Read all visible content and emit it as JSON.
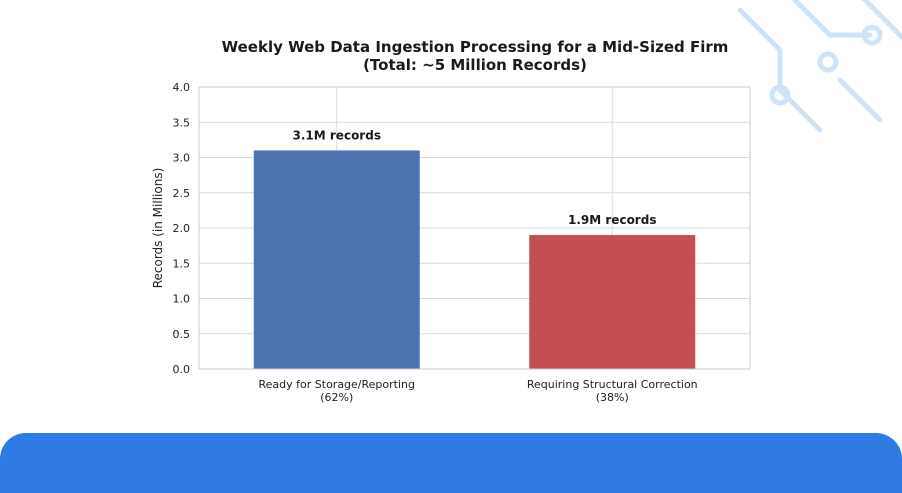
{
  "colors": {
    "bar_ready": "#4c72b0",
    "bar_correction": "#c44e52",
    "banner": "#2f7ae5",
    "grid": "#d9d9d9",
    "decor": "#cfe3f7"
  },
  "decor": {
    "icon": "circuit-pattern-icon"
  },
  "chart_data": {
    "type": "bar",
    "title_line1": "Weekly Web Data Ingestion Processing for a Mid-Sized Firm",
    "title_line2": "(Total: ~5 Million Records)",
    "ylabel": "Records (in Millions)",
    "xlabel": "",
    "ylim": [
      0,
      4.0
    ],
    "yticks": [
      "0.0",
      "0.5",
      "1.0",
      "1.5",
      "2.0",
      "2.5",
      "3.0",
      "3.5",
      "4.0"
    ],
    "grid": true,
    "categories": [
      {
        "line1": "Ready for Storage/Reporting",
        "line2": "(62%)"
      },
      {
        "line1": "Requiring Structural Correction",
        "line2": "(38%)"
      }
    ],
    "values": [
      3.1,
      1.9
    ],
    "data_labels": [
      "3.1M records",
      "1.9M records"
    ]
  }
}
